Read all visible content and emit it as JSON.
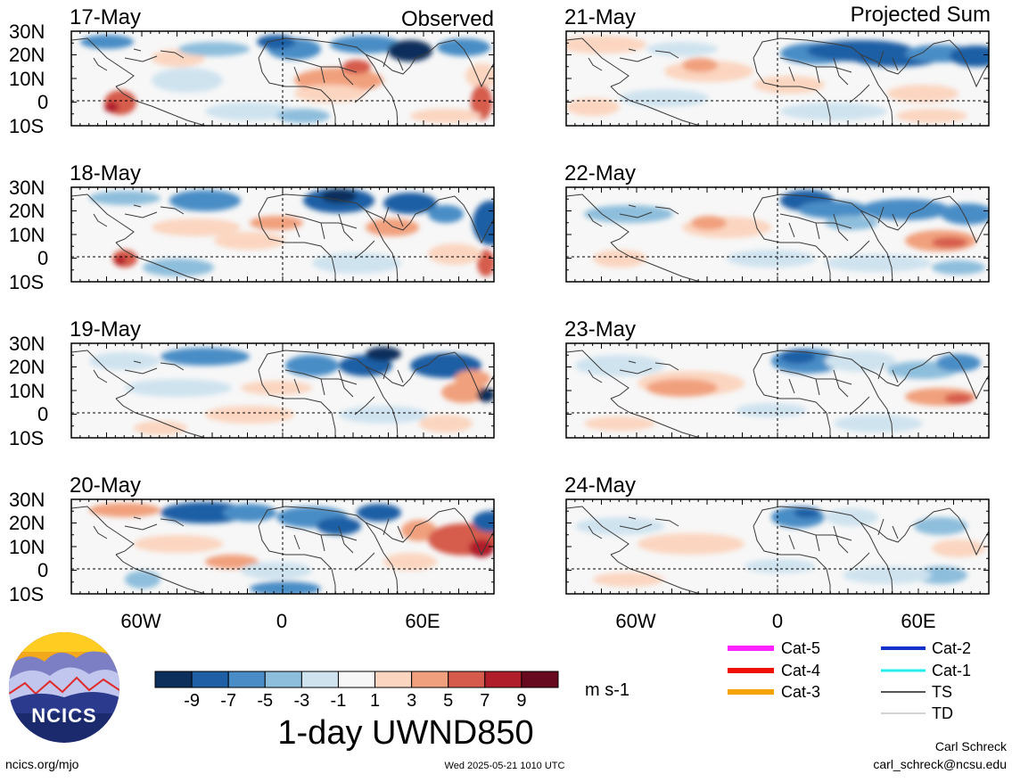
{
  "observed_label": "Observed",
  "projected_label": "Projected Sum",
  "lat_labels": [
    "30N",
    "20N",
    "10N",
    "0",
    "10S"
  ],
  "lon_labels": [
    "60W",
    "0",
    "60E"
  ],
  "panels": [
    {
      "date": "17-May",
      "kind": "observed"
    },
    {
      "date": "18-May",
      "kind": "observed"
    },
    {
      "date": "19-May",
      "kind": "observed"
    },
    {
      "date": "20-May",
      "kind": "observed"
    },
    {
      "date": "21-May",
      "kind": "projected"
    },
    {
      "date": "22-May",
      "kind": "projected"
    },
    {
      "date": "23-May",
      "kind": "projected"
    },
    {
      "date": "24-May",
      "kind": "projected"
    }
  ],
  "colorbar": {
    "tick_labels": [
      "-9",
      "-7",
      "-5",
      "-3",
      "-1",
      "1",
      "3",
      "5",
      "7",
      "9"
    ],
    "colors": [
      "#0d2f5c",
      "#1f5fa5",
      "#4a8dc6",
      "#8dbedc",
      "#cfe3ef",
      "#f7f7f7",
      "#fbd5c0",
      "#f1a07d",
      "#d65b4c",
      "#b01e2c",
      "#670a1f"
    ],
    "units": "m s-1",
    "title": "1-day UWND850"
  },
  "legend": {
    "items": [
      {
        "label": "Cat-5",
        "color": "#ff22ff"
      },
      {
        "label": "Cat-4",
        "color": "#ee1100"
      },
      {
        "label": "Cat-3",
        "color": "#f5a300"
      },
      {
        "label": "Cat-2",
        "color": "#1133cc"
      },
      {
        "label": "Cat-1",
        "color": "#22eeee"
      },
      {
        "label": "TS",
        "color": "#555555"
      },
      {
        "label": "TD",
        "color": "#aaaaaa"
      }
    ]
  },
  "footer": {
    "logo_text": "NCICS",
    "url": "ncics.org/mjo",
    "timestamp": "Wed 2025-05-21 1010 UTC",
    "author": "Carl Schreck",
    "email": "carl_schreck@ncsu.edu"
  }
}
